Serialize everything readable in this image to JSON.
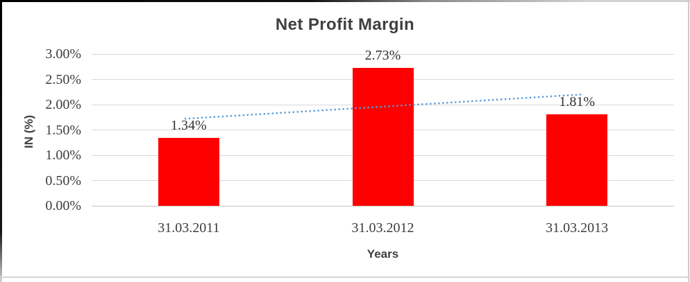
{
  "chart_data": {
    "type": "bar",
    "title": "Net Profit Margin",
    "xlabel": "Years",
    "ylabel": "IN (%)",
    "categories": [
      "31.03.2011",
      "31.03.2012",
      "31.03.2013"
    ],
    "values": [
      1.34,
      2.73,
      1.81
    ],
    "data_labels": [
      "1.34%",
      "2.73%",
      "1.81%"
    ],
    "yticks": [
      "0.00%",
      "0.50%",
      "1.00%",
      "1.50%",
      "2.00%",
      "2.50%",
      "3.00%"
    ],
    "ytick_values": [
      0.0,
      0.5,
      1.0,
      1.5,
      2.0,
      2.5,
      3.0
    ],
    "ylim": [
      0,
      3
    ],
    "grid": true,
    "legend": "none",
    "bar_color": "#FF0000",
    "trendline": {
      "type": "linear",
      "style": "dotted",
      "color": "#5B9BD5"
    },
    "colors": {
      "gridline": "#D9D9D9",
      "axis_line": "#C3C3C3",
      "title_text": "#3F3F3F",
      "tick_text": "#3C3C3C"
    }
  }
}
